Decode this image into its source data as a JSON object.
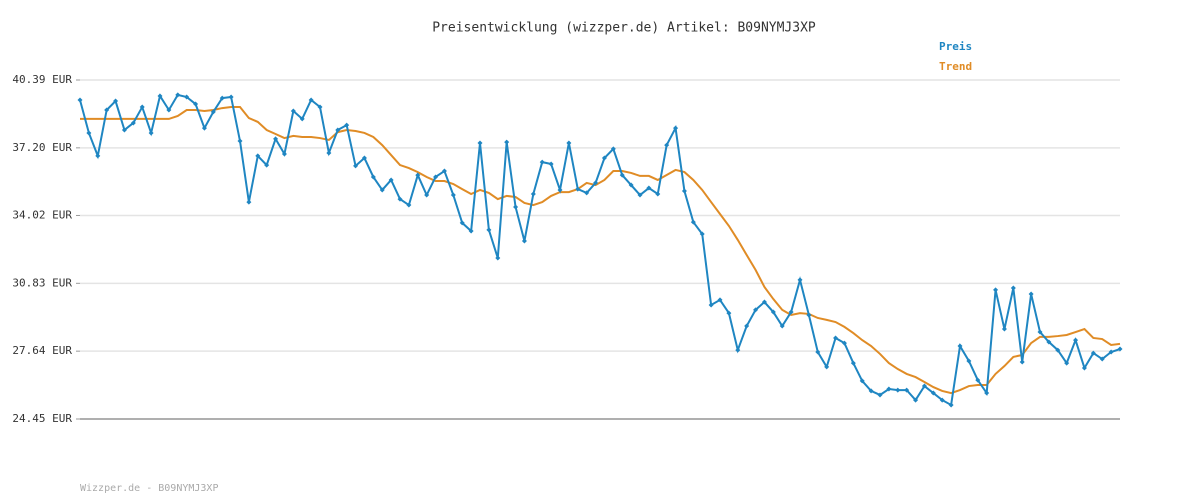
{
  "chart_data": {
    "type": "line",
    "title": "Preisentwicklung (wizzper.de) Artikel: B09NYMJ3XP",
    "footer": "Wizzper.de - B09NYMJ3XP",
    "ylim": [
      24.45,
      40.39
    ],
    "yticks": [
      {
        "value": 24.45,
        "label": "24.45 EUR"
      },
      {
        "value": 27.64,
        "label": "27.64 EUR"
      },
      {
        "value": 30.83,
        "label": "30.83 EUR"
      },
      {
        "value": 34.02,
        "label": "34.02 EUR"
      },
      {
        "value": 37.2,
        "label": "37.20 EUR"
      },
      {
        "value": 40.39,
        "label": "40.39 EUR"
      }
    ],
    "grid": true,
    "legend": "top-right",
    "series": [
      {
        "name": "Preis",
        "color": "#1f86c2",
        "markers": true,
        "values": [
          39.45,
          37.9,
          36.82,
          38.98,
          39.4,
          38.04,
          38.37,
          39.12,
          37.9,
          39.64,
          38.98,
          39.69,
          39.59,
          39.26,
          38.13,
          38.89,
          39.54,
          39.59,
          37.52,
          34.65,
          36.82,
          36.39,
          37.62,
          36.91,
          38.93,
          38.56,
          39.45,
          39.12,
          36.96,
          38.04,
          38.27,
          36.35,
          36.72,
          35.83,
          35.22,
          35.69,
          34.79,
          34.51,
          35.92,
          34.98,
          35.83,
          36.11,
          34.98,
          33.67,
          33.29,
          37.43,
          33.34,
          32.02,
          37.47,
          34.42,
          32.82,
          35.03,
          36.53,
          36.44,
          35.22,
          37.43,
          35.26,
          35.08,
          35.55,
          36.72,
          37.15,
          35.92,
          35.45,
          34.98,
          35.31,
          35.03,
          37.33,
          38.13,
          35.17,
          33.71,
          33.15,
          29.81,
          30.05,
          29.43,
          27.69,
          28.82,
          29.58,
          29.95,
          29.48,
          28.82,
          29.48,
          30.99,
          29.34,
          27.6,
          26.9,
          28.26,
          28.02,
          27.08,
          26.24,
          25.77,
          25.58,
          25.86,
          25.81,
          25.81,
          25.34,
          26.0,
          25.67,
          25.34,
          25.11,
          27.88,
          27.18,
          26.28,
          25.67,
          30.52,
          28.68,
          30.61,
          27.13,
          30.33,
          28.54,
          28.07,
          27.69,
          27.08,
          28.16,
          26.85,
          27.55,
          27.27,
          27.6,
          27.74
        ]
      },
      {
        "name": "Trend",
        "color": "#e08c26",
        "markers": false,
        "values": [
          38.56,
          38.56,
          38.56,
          38.56,
          38.56,
          38.56,
          38.56,
          38.56,
          38.56,
          38.56,
          38.56,
          38.7,
          38.98,
          38.98,
          38.93,
          38.98,
          39.07,
          39.12,
          39.12,
          38.6,
          38.42,
          38.04,
          37.85,
          37.66,
          37.76,
          37.71,
          37.71,
          37.66,
          37.57,
          37.94,
          38.04,
          37.99,
          37.9,
          37.71,
          37.33,
          36.86,
          36.39,
          36.25,
          36.06,
          35.83,
          35.64,
          35.64,
          35.5,
          35.26,
          35.03,
          35.22,
          35.08,
          34.79,
          34.94,
          34.89,
          34.61,
          34.51,
          34.65,
          34.94,
          35.12,
          35.12,
          35.26,
          35.55,
          35.45,
          35.69,
          36.11,
          36.11,
          36.02,
          35.88,
          35.88,
          35.69,
          35.92,
          36.16,
          36.06,
          35.69,
          35.22,
          34.65,
          34.09,
          33.53,
          32.87,
          32.16,
          31.46,
          30.66,
          30.09,
          29.58,
          29.34,
          29.43,
          29.39,
          29.2,
          29.11,
          29.01,
          28.78,
          28.49,
          28.16,
          27.88,
          27.51,
          27.08,
          26.8,
          26.57,
          26.42,
          26.19,
          25.95,
          25.77,
          25.67,
          25.81,
          26.0,
          26.05,
          26.05,
          26.57,
          26.94,
          27.37,
          27.46,
          28.02,
          28.31,
          28.31,
          28.35,
          28.4,
          28.54,
          28.68,
          28.26,
          28.21,
          27.93,
          27.98
        ]
      }
    ]
  }
}
